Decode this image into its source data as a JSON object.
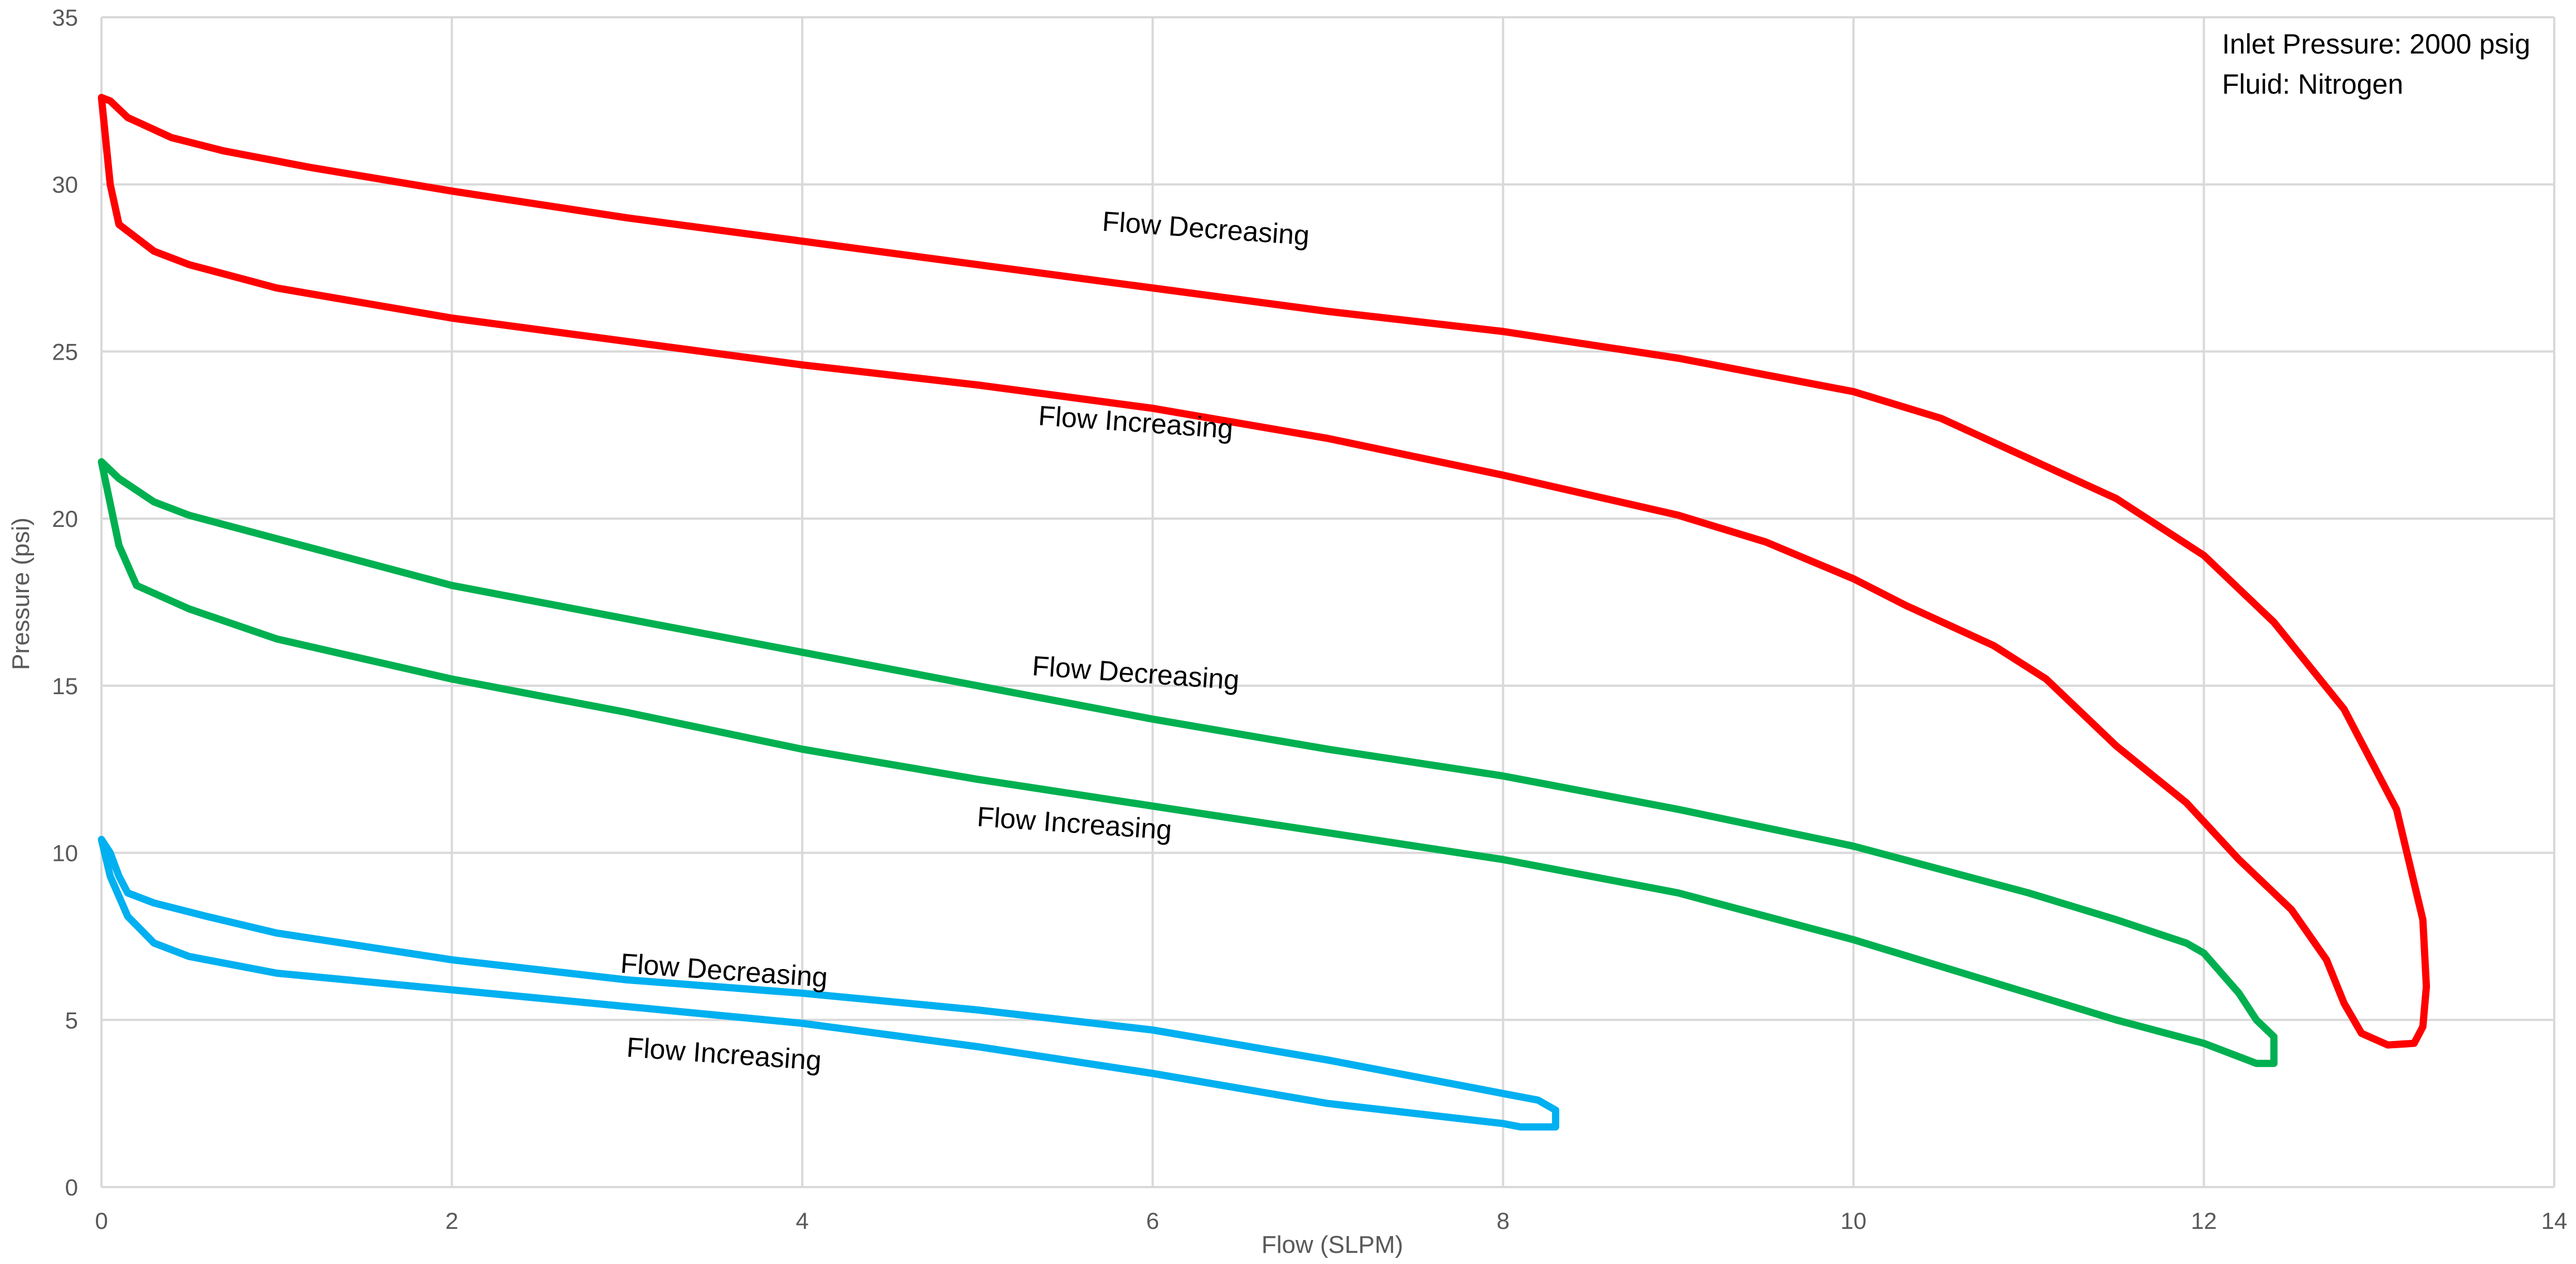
{
  "chart_data": {
    "type": "line",
    "title": "",
    "xlabel": "Flow (SLPM)",
    "ylabel": "Pressure (psi)",
    "xlim": [
      0,
      14
    ],
    "ylim": [
      0,
      35
    ],
    "xticks": [
      0,
      2,
      4,
      6,
      8,
      10,
      12,
      14
    ],
    "yticks": [
      0,
      5,
      10,
      15,
      20,
      25,
      30,
      35
    ],
    "grid": true,
    "info_lines": [
      "Inlet Pressure: 2000 psig",
      "Fluid: Nitrogen"
    ],
    "series": [
      {
        "color": "#ff0000",
        "points": [
          [
            0,
            32.6
          ],
          [
            0.05,
            32.5
          ],
          [
            0.15,
            32.0
          ],
          [
            0.4,
            31.4
          ],
          [
            0.7,
            31.0
          ],
          [
            1.2,
            30.5
          ],
          [
            2,
            29.8
          ],
          [
            3,
            29.0
          ],
          [
            4,
            28.3
          ],
          [
            5,
            27.6
          ],
          [
            6,
            26.9
          ],
          [
            7,
            26.2
          ],
          [
            8,
            25.6
          ],
          [
            9,
            24.8
          ],
          [
            10,
            23.8
          ],
          [
            10.5,
            23.0
          ],
          [
            11,
            21.8
          ],
          [
            11.5,
            20.6
          ],
          [
            12,
            18.9
          ],
          [
            12.4,
            16.9
          ],
          [
            12.8,
            14.3
          ],
          [
            13.1,
            11.3
          ],
          [
            13.25,
            8.0
          ],
          [
            13.27,
            6.0
          ],
          [
            13.25,
            4.8
          ],
          [
            13.2,
            4.3
          ],
          [
            13.05,
            4.25
          ],
          [
            12.9,
            4.6
          ],
          [
            12.8,
            5.5
          ],
          [
            12.7,
            6.8
          ],
          [
            12.5,
            8.3
          ],
          [
            12.2,
            9.8
          ],
          [
            11.9,
            11.5
          ],
          [
            11.5,
            13.2
          ],
          [
            11.1,
            15.2
          ],
          [
            10.8,
            16.2
          ],
          [
            10.3,
            17.4
          ],
          [
            10,
            18.2
          ],
          [
            9.5,
            19.3
          ],
          [
            9,
            20.1
          ],
          [
            8,
            21.3
          ],
          [
            7,
            22.4
          ],
          [
            6,
            23.3
          ],
          [
            5,
            24.0
          ],
          [
            4,
            24.6
          ],
          [
            3,
            25.3
          ],
          [
            2,
            26.0
          ],
          [
            1,
            26.9
          ],
          [
            0.5,
            27.6
          ],
          [
            0.3,
            28.0
          ],
          [
            0.1,
            28.8
          ],
          [
            0.05,
            30.0
          ],
          [
            0,
            32.6
          ]
        ]
      },
      {
        "color": "#00b050",
        "points": [
          [
            0,
            21.7
          ],
          [
            0.1,
            21.2
          ],
          [
            0.3,
            20.5
          ],
          [
            0.5,
            20.1
          ],
          [
            1,
            19.4
          ],
          [
            2,
            18.0
          ],
          [
            3,
            17.0
          ],
          [
            4,
            16.0
          ],
          [
            5,
            15.0
          ],
          [
            6,
            14.0
          ],
          [
            7,
            13.1
          ],
          [
            8,
            12.3
          ],
          [
            9,
            11.3
          ],
          [
            10,
            10.2
          ],
          [
            11,
            8.8
          ],
          [
            11.5,
            8.0
          ],
          [
            11.9,
            7.3
          ],
          [
            12.0,
            7.0
          ],
          [
            12.2,
            5.8
          ],
          [
            12.3,
            5.0
          ],
          [
            12.4,
            4.5
          ],
          [
            12.4,
            3.7
          ],
          [
            12.3,
            3.7
          ],
          [
            12.0,
            4.3
          ],
          [
            11.5,
            5.0
          ],
          [
            11,
            5.8
          ],
          [
            10,
            7.4
          ],
          [
            9,
            8.8
          ],
          [
            8,
            9.8
          ],
          [
            7,
            10.6
          ],
          [
            6,
            11.4
          ],
          [
            5,
            12.2
          ],
          [
            4,
            13.1
          ],
          [
            3,
            14.2
          ],
          [
            2,
            15.2
          ],
          [
            1,
            16.4
          ],
          [
            0.5,
            17.3
          ],
          [
            0.2,
            18.0
          ],
          [
            0.1,
            19.2
          ],
          [
            0,
            21.7
          ]
        ]
      },
      {
        "color": "#00b0f0",
        "points": [
          [
            0,
            10.4
          ],
          [
            0.05,
            10.0
          ],
          [
            0.1,
            9.3
          ],
          [
            0.15,
            8.8
          ],
          [
            0.3,
            8.5
          ],
          [
            0.6,
            8.1
          ],
          [
            1,
            7.6
          ],
          [
            2,
            6.8
          ],
          [
            3,
            6.2
          ],
          [
            4,
            5.8
          ],
          [
            5,
            5.3
          ],
          [
            6,
            4.7
          ],
          [
            7,
            3.8
          ],
          [
            7.5,
            3.3
          ],
          [
            8,
            2.8
          ],
          [
            8.2,
            2.6
          ],
          [
            8.3,
            2.3
          ],
          [
            8.3,
            1.8
          ],
          [
            8.1,
            1.8
          ],
          [
            8.0,
            1.9
          ],
          [
            7,
            2.5
          ],
          [
            6,
            3.4
          ],
          [
            5,
            4.2
          ],
          [
            4,
            4.9
          ],
          [
            3,
            5.4
          ],
          [
            2,
            5.9
          ],
          [
            1,
            6.4
          ],
          [
            0.5,
            6.9
          ],
          [
            0.3,
            7.3
          ],
          [
            0.15,
            8.1
          ],
          [
            0.05,
            9.3
          ],
          [
            0,
            10.4
          ]
        ]
      }
    ],
    "annotations": [
      {
        "text": "Flow Decreasing",
        "x": 6.3,
        "y": 28.4,
        "angle": 4
      },
      {
        "text": "Flow Increasing",
        "x": 5.9,
        "y": 22.6,
        "angle": 4
      },
      {
        "text": "Flow Decreasing",
        "x": 5.9,
        "y": 15.1,
        "angle": 4
      },
      {
        "text": "Flow Increasing",
        "x": 5.55,
        "y": 10.6,
        "angle": 4
      },
      {
        "text": "Flow Decreasing",
        "x": 3.55,
        "y": 6.2,
        "angle": 4
      },
      {
        "text": "Flow Increasing",
        "x": 3.55,
        "y": 3.7,
        "angle": 4
      }
    ]
  }
}
